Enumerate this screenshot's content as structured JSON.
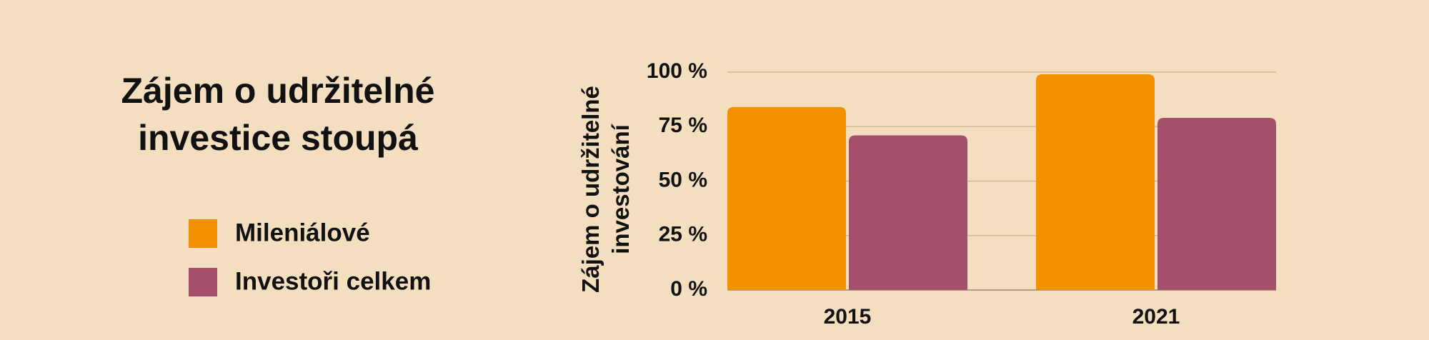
{
  "chart_data": {
    "type": "bar",
    "title": "Zájem o udržitelné investice stoupá",
    "y_label": "Zájem o udržitelné investování",
    "categories": [
      "2015",
      "2021"
    ],
    "series": [
      {
        "name": "Mileniálové",
        "color": "#f29100",
        "values": [
          84,
          99
        ]
      },
      {
        "name": "Investoři celkem",
        "color": "#a5506b",
        "values": [
          71,
          79
        ]
      }
    ],
    "ylim": [
      0,
      100
    ],
    "yticks": [
      {
        "value": 0,
        "label": "0 %"
      },
      {
        "value": 25,
        "label": "25 %"
      },
      {
        "value": 50,
        "label": "50 %"
      },
      {
        "value": 75,
        "label": "75 %"
      },
      {
        "value": 100,
        "label": "100 %"
      }
    ],
    "grid": true
  }
}
